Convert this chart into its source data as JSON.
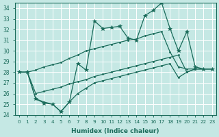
{
  "xlabel": "Humidex (Indice chaleur)",
  "ylabel": "",
  "bg_color": "#c5e8e4",
  "line_color": "#1a6b5a",
  "grid_color": "#b0d8d4",
  "xlim": [
    -0.5,
    23.5
  ],
  "ylim": [
    24,
    34.5
  ],
  "xticks": [
    0,
    1,
    2,
    3,
    4,
    5,
    6,
    7,
    8,
    9,
    10,
    11,
    12,
    13,
    14,
    15,
    16,
    17,
    18,
    19,
    20,
    21,
    22,
    23
  ],
  "yticks": [
    24,
    25,
    26,
    27,
    28,
    29,
    30,
    31,
    32,
    33,
    34
  ],
  "series": [
    {
      "x": [
        0,
        1,
        2,
        3,
        4,
        5,
        6,
        7,
        8,
        9,
        10,
        11,
        12,
        13,
        14,
        15,
        16,
        17,
        18,
        19,
        20,
        21,
        22,
        23
      ],
      "y": [
        28.0,
        28.0,
        25.5,
        25.1,
        25.0,
        24.3,
        25.2,
        28.8,
        28.2,
        32.8,
        32.1,
        32.2,
        32.3,
        31.2,
        31.0,
        33.3,
        33.8,
        34.5,
        32.1,
        30.0,
        31.8,
        28.5,
        28.3,
        28.3
      ],
      "marker": "*",
      "ms": 4,
      "lw": 0.9
    },
    {
      "x": [
        0,
        1,
        2,
        3,
        4,
        5,
        6,
        7,
        8,
        9,
        10,
        11,
        12,
        13,
        14,
        15,
        16,
        17,
        18,
        19,
        20,
        21,
        22,
        23
      ],
      "y": [
        28.0,
        28.0,
        28.2,
        28.5,
        28.7,
        28.9,
        29.3,
        29.6,
        30.0,
        30.2,
        30.4,
        30.6,
        30.8,
        31.0,
        31.1,
        31.4,
        31.6,
        31.8,
        29.9,
        28.5,
        28.3,
        28.3,
        28.3,
        28.3
      ],
      "marker": ".",
      "ms": 3,
      "lw": 0.9
    },
    {
      "x": [
        0,
        1,
        2,
        3,
        4,
        5,
        6,
        7,
        8,
        9,
        10,
        11,
        12,
        13,
        14,
        15,
        16,
        17,
        18,
        19,
        20,
        21,
        22,
        23
      ],
      "y": [
        28.0,
        28.0,
        26.0,
        26.2,
        26.4,
        26.6,
        26.9,
        27.1,
        27.3,
        27.6,
        27.8,
        28.0,
        28.2,
        28.4,
        28.6,
        28.8,
        29.0,
        29.2,
        29.4,
        29.6,
        28.0,
        28.3,
        28.3,
        28.3
      ],
      "marker": ".",
      "ms": 3,
      "lw": 0.9
    },
    {
      "x": [
        0,
        1,
        2,
        3,
        4,
        5,
        6,
        7,
        8,
        9,
        10,
        11,
        12,
        13,
        14,
        15,
        16,
        17,
        18,
        19,
        20,
        21,
        22,
        23
      ],
      "y": [
        28.0,
        28.0,
        25.5,
        25.2,
        25.0,
        24.3,
        25.2,
        26.0,
        26.5,
        27.0,
        27.2,
        27.4,
        27.6,
        27.8,
        28.0,
        28.2,
        28.4,
        28.6,
        28.8,
        27.5,
        28.0,
        28.3,
        28.3,
        28.3
      ],
      "marker": ".",
      "ms": 3,
      "lw": 0.9
    }
  ]
}
